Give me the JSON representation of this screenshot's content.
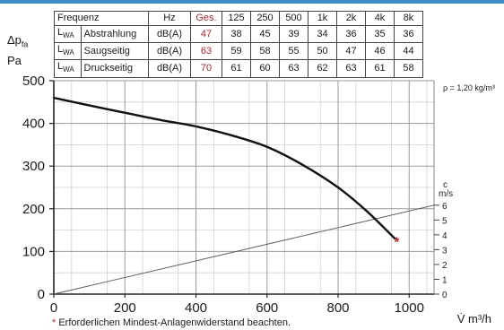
{
  "header_color": "#3a8fc8",
  "sound_table": {
    "headers": [
      "Frequenz",
      "Hz",
      "Ges.",
      "125",
      "250",
      "500",
      "1k",
      "2k",
      "4k",
      "8k"
    ],
    "rows": [
      {
        "sym": "L",
        "sub": "WA",
        "label": "Abstrahlung",
        "unit": "dB(A)",
        "total": "47",
        "values": [
          "38",
          "45",
          "39",
          "34",
          "36",
          "35",
          "36"
        ]
      },
      {
        "sym": "L",
        "sub": "WA",
        "label": "Saugseitig",
        "unit": "dB(A)",
        "total": "63",
        "values": [
          "59",
          "58",
          "55",
          "50",
          "47",
          "46",
          "44"
        ]
      },
      {
        "sym": "L",
        "sub": "WA",
        "label": "Druckseitig",
        "unit": "dB(A)",
        "total": "70",
        "values": [
          "61",
          "60",
          "63",
          "62",
          "63",
          "61",
          "58"
        ]
      }
    ]
  },
  "chart_data": {
    "type": "line",
    "y_label": {
      "sym": "Δp",
      "sub": "fa",
      "unit": "Pa"
    },
    "x_label": "V̇ m³/h",
    "density_note": "ρ = 1,20 kg/m³",
    "xlim": [
      0,
      1070
    ],
    "ylim": [
      0,
      500
    ],
    "x_ticks": [
      "0",
      "200",
      "400",
      "600",
      "800",
      "1000"
    ],
    "x_tick_values": [
      0,
      200,
      400,
      600,
      800,
      1000
    ],
    "y_ticks": [
      "0",
      "100",
      "200",
      "300",
      "400",
      "500"
    ],
    "y_tick_values": [
      0,
      100,
      200,
      300,
      400,
      500
    ],
    "grid": true,
    "series": [
      {
        "kind": "pressure_curve",
        "points": [
          [
            0,
            460
          ],
          [
            100,
            442
          ],
          [
            200,
            425
          ],
          [
            300,
            408
          ],
          [
            400,
            393
          ],
          [
            500,
            372
          ],
          [
            600,
            345
          ],
          [
            700,
            303
          ],
          [
            800,
            250
          ],
          [
            880,
            195
          ],
          [
            960,
            130
          ]
        ]
      }
    ],
    "velocity_axis": {
      "label_top": "c",
      "label_bottom": "m/s",
      "ticks": [
        "0",
        "1",
        "2",
        "3",
        "4",
        "5",
        "6"
      ],
      "tick_values": [
        0,
        1,
        2,
        3,
        4,
        5,
        6
      ],
      "max_velocity": 6
    },
    "velocity_line": {
      "from_velocity": 0,
      "to_velocity": 6
    },
    "marker": {
      "x": 965,
      "y": 125,
      "symbol": "*",
      "color": "#c0202a"
    }
  },
  "footnote": {
    "star": "*",
    "text": "Erforderlichen Mindest-Anlagenwiderstand beachten."
  }
}
